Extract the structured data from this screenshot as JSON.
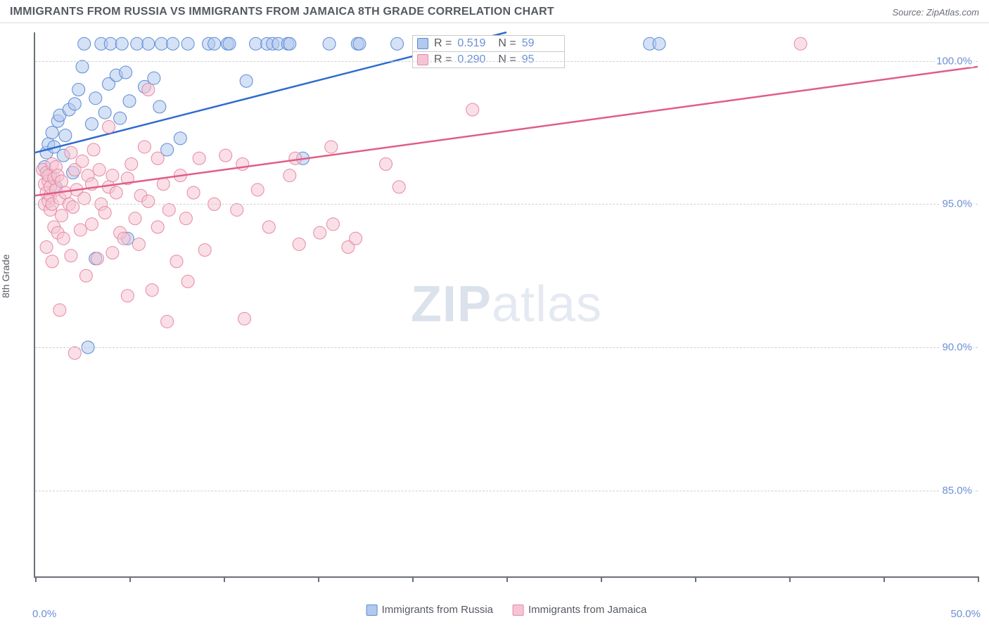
{
  "title": "IMMIGRANTS FROM RUSSIA VS IMMIGRANTS FROM JAMAICA 8TH GRADE CORRELATION CHART",
  "source": "Source: ZipAtlas.com",
  "y_axis_label": "8th Grade",
  "watermark": {
    "join": "ZIPatlas",
    "zip": "ZIP",
    "atlas": "atlas"
  },
  "colors": {
    "series1_fill": "#b2c8ed",
    "series1_stroke": "#5a8bd6",
    "series1_line": "#2f6bcf",
    "series2_fill": "#f6c4d2",
    "series2_stroke": "#e589a6",
    "series2_line": "#e05d88",
    "axis": "#6b6f76",
    "grid": "#d0d0d0",
    "tick_label": "#6d8fd6",
    "text": "#555a61",
    "background": "#ffffff"
  },
  "chart": {
    "type": "scatter",
    "x_domain": [
      0,
      50
    ],
    "y_domain": [
      82,
      101
    ],
    "y_gridlines": [
      85,
      90,
      95,
      100
    ],
    "y_tick_labels": [
      "85.0%",
      "90.0%",
      "95.0%",
      "100.0%"
    ],
    "x_ticks": [
      0,
      5,
      10,
      15,
      20,
      25,
      30,
      35,
      40,
      45,
      50
    ],
    "x_min_label": "0.0%",
    "x_max_label": "50.0%",
    "marker_radius": 9,
    "marker_opacity": 0.55,
    "line_width": 2.5
  },
  "series": [
    {
      "name": "Immigrants from Russia",
      "color_key": "series1",
      "R": "0.519",
      "N": "59",
      "trend": {
        "x1": 0,
        "y1": 96.8,
        "x2": 25,
        "y2": 101
      },
      "points": [
        [
          0.5,
          96.3
        ],
        [
          0.6,
          96.8
        ],
        [
          0.7,
          97.1
        ],
        [
          0.8,
          96.0
        ],
        [
          0.9,
          97.5
        ],
        [
          1.0,
          97.0
        ],
        [
          1.1,
          95.6
        ],
        [
          1.2,
          97.9
        ],
        [
          1.3,
          98.1
        ],
        [
          1.5,
          96.7
        ],
        [
          1.6,
          97.4
        ],
        [
          1.8,
          98.3
        ],
        [
          2.0,
          96.1
        ],
        [
          2.1,
          98.5
        ],
        [
          2.3,
          99.0
        ],
        [
          2.5,
          99.8
        ],
        [
          2.6,
          100.6
        ],
        [
          2.8,
          90.0
        ],
        [
          3.0,
          97.8
        ],
        [
          3.2,
          93.1
        ],
        [
          3.2,
          98.7
        ],
        [
          3.5,
          100.6
        ],
        [
          3.7,
          98.2
        ],
        [
          3.9,
          99.2
        ],
        [
          4.0,
          100.6
        ],
        [
          4.3,
          99.5
        ],
        [
          4.5,
          98.0
        ],
        [
          4.6,
          100.6
        ],
        [
          4.8,
          99.6
        ],
        [
          4.9,
          93.8
        ],
        [
          5.0,
          98.6
        ],
        [
          5.4,
          100.6
        ],
        [
          5.8,
          99.1
        ],
        [
          6.0,
          100.6
        ],
        [
          6.3,
          99.4
        ],
        [
          6.6,
          98.4
        ],
        [
          6.7,
          100.6
        ],
        [
          7.0,
          96.9
        ],
        [
          7.3,
          100.6
        ],
        [
          7.7,
          97.3
        ],
        [
          8.1,
          100.6
        ],
        [
          9.2,
          100.6
        ],
        [
          9.5,
          100.6
        ],
        [
          10.2,
          100.6
        ],
        [
          10.3,
          100.6
        ],
        [
          11.2,
          99.3
        ],
        [
          11.7,
          100.6
        ],
        [
          12.3,
          100.6
        ],
        [
          12.6,
          100.6
        ],
        [
          12.9,
          100.6
        ],
        [
          13.4,
          100.6
        ],
        [
          13.5,
          100.6
        ],
        [
          14.2,
          96.6
        ],
        [
          15.6,
          100.6
        ],
        [
          17.1,
          100.6
        ],
        [
          17.2,
          100.6
        ],
        [
          19.2,
          100.6
        ],
        [
          32.6,
          100.6
        ],
        [
          33.1,
          100.6
        ]
      ]
    },
    {
      "name": "Immigrants from Jamaica",
      "color_key": "series2",
      "R": "0.290",
      "N": "95",
      "trend": {
        "x1": 0,
        "y1": 95.3,
        "x2": 50,
        "y2": 99.8
      },
      "points": [
        [
          0.4,
          96.2
        ],
        [
          0.5,
          95.7
        ],
        [
          0.5,
          95.0
        ],
        [
          0.6,
          95.4
        ],
        [
          0.6,
          96.1
        ],
        [
          0.6,
          93.5
        ],
        [
          0.7,
          95.8
        ],
        [
          0.7,
          95.1
        ],
        [
          0.7,
          96.0
        ],
        [
          0.8,
          95.3
        ],
        [
          0.8,
          94.8
        ],
        [
          0.8,
          95.6
        ],
        [
          0.9,
          96.4
        ],
        [
          0.9,
          95.0
        ],
        [
          0.9,
          93.0
        ],
        [
          1.0,
          95.9
        ],
        [
          1.0,
          94.2
        ],
        [
          1.1,
          95.5
        ],
        [
          1.1,
          96.3
        ],
        [
          1.2,
          94.0
        ],
        [
          1.2,
          96.0
        ],
        [
          1.3,
          91.3
        ],
        [
          1.3,
          95.2
        ],
        [
          1.4,
          94.6
        ],
        [
          1.4,
          95.8
        ],
        [
          1.5,
          93.8
        ],
        [
          1.6,
          95.4
        ],
        [
          1.8,
          95.0
        ],
        [
          1.9,
          93.2
        ],
        [
          1.9,
          96.8
        ],
        [
          2.0,
          94.9
        ],
        [
          2.1,
          89.8
        ],
        [
          2.1,
          96.2
        ],
        [
          2.2,
          95.5
        ],
        [
          2.4,
          94.1
        ],
        [
          2.5,
          96.5
        ],
        [
          2.6,
          95.2
        ],
        [
          2.7,
          92.5
        ],
        [
          2.8,
          96.0
        ],
        [
          3.0,
          95.7
        ],
        [
          3.0,
          94.3
        ],
        [
          3.1,
          96.9
        ],
        [
          3.3,
          93.1
        ],
        [
          3.4,
          96.2
        ],
        [
          3.5,
          95.0
        ],
        [
          3.7,
          94.7
        ],
        [
          3.9,
          95.6
        ],
        [
          3.9,
          97.7
        ],
        [
          4.1,
          93.3
        ],
        [
          4.1,
          96.0
        ],
        [
          4.3,
          95.4
        ],
        [
          4.5,
          94.0
        ],
        [
          4.7,
          93.8
        ],
        [
          4.9,
          91.8
        ],
        [
          4.9,
          95.9
        ],
        [
          5.1,
          96.4
        ],
        [
          5.3,
          94.5
        ],
        [
          5.5,
          93.6
        ],
        [
          5.6,
          95.3
        ],
        [
          5.8,
          97.0
        ],
        [
          6.0,
          99.0
        ],
        [
          6.0,
          95.1
        ],
        [
          6.2,
          92.0
        ],
        [
          6.5,
          94.2
        ],
        [
          6.5,
          96.6
        ],
        [
          6.8,
          95.7
        ],
        [
          7.0,
          90.9
        ],
        [
          7.1,
          94.8
        ],
        [
          7.5,
          93.0
        ],
        [
          7.7,
          96.0
        ],
        [
          8.0,
          94.5
        ],
        [
          8.1,
          92.3
        ],
        [
          8.4,
          95.4
        ],
        [
          8.7,
          96.6
        ],
        [
          9.0,
          93.4
        ],
        [
          9.5,
          95.0
        ],
        [
          10.1,
          96.7
        ],
        [
          10.7,
          94.8
        ],
        [
          11.0,
          96.4
        ],
        [
          11.1,
          91.0
        ],
        [
          11.8,
          95.5
        ],
        [
          12.4,
          94.2
        ],
        [
          13.5,
          96.0
        ],
        [
          13.8,
          96.6
        ],
        [
          14.0,
          93.6
        ],
        [
          15.1,
          94.0
        ],
        [
          15.7,
          97.0
        ],
        [
          15.8,
          94.3
        ],
        [
          16.6,
          93.5
        ],
        [
          17.0,
          93.8
        ],
        [
          18.6,
          96.4
        ],
        [
          19.3,
          95.6
        ],
        [
          23.2,
          98.3
        ],
        [
          24.2,
          100.6
        ],
        [
          40.6,
          100.6
        ]
      ]
    }
  ],
  "stats_labels": {
    "R": "R =",
    "N": "N ="
  },
  "legend_labels": {
    "s1": "Immigrants from Russia",
    "s2": "Immigrants from Jamaica"
  }
}
